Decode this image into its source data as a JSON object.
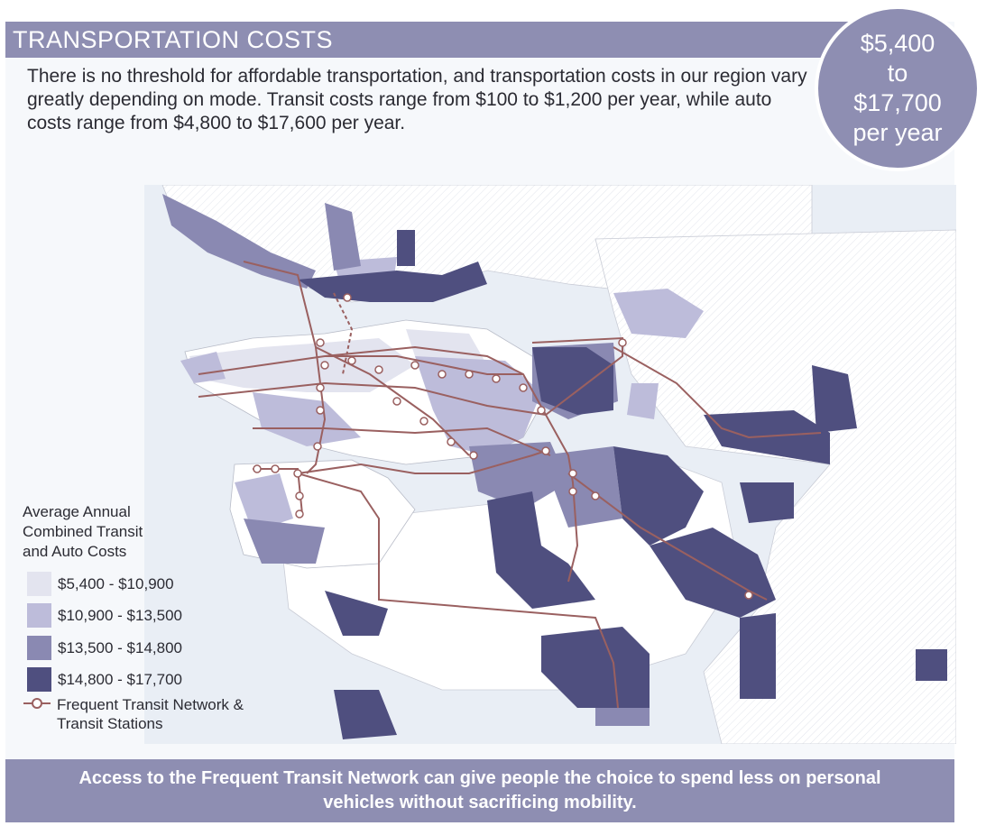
{
  "header": {
    "title": "TRANSPORTATION COSTS",
    "intro": "There is no threshold for affordable transportation, and transportation costs in our region vary greatly depending on mode. Transit costs range from $100 to $1,200 per year, while auto costs range from $4,800 to $17,600 per year."
  },
  "badge": {
    "line1": "$5,400",
    "line2": "to",
    "line3": "$17,700",
    "line4": "per year"
  },
  "legend": {
    "title": "Average Annual\nCombined Transit\nand Auto Costs",
    "items": [
      {
        "label": "$5,400 - $10,900",
        "color": "#e3e4ef"
      },
      {
        "label": "$10,900 - $13,500",
        "color": "#bdbcda"
      },
      {
        "label": "$13,500 - $14,800",
        "color": "#8a89b2"
      },
      {
        "label": "$14,800 - $17,700",
        "color": "#4f4f7f"
      }
    ],
    "network_label": "Frequent Transit Network & Transit Stations",
    "network_color": "#9a6060"
  },
  "footer": {
    "message": "Access to the Frequent Transit Network can give people the choice to spend less on personal vehicles without sacrificing mobility."
  },
  "colors": {
    "accent": "#8e8eb2",
    "water": "#e9eef5",
    "land": "#ffffff"
  }
}
